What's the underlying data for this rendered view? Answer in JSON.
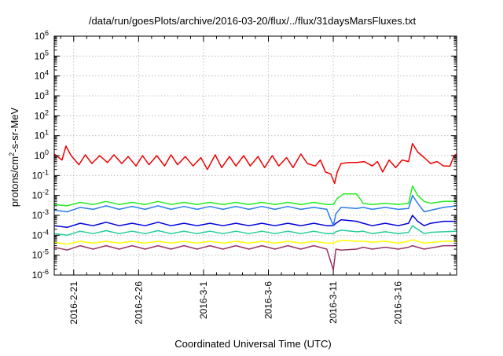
{
  "chart_data": {
    "type": "line",
    "title": "/data/run/goesPlots/archive/2016-03-20/flux/../flux/31daysMarsFluxes.txt",
    "xlabel": "Coordinated Universal Time (UTC)",
    "ylabel": {
      "base": "protons/cm",
      "sup": "2",
      "rest": "-s-sr-MeV"
    },
    "x_range_days": [
      -1.5,
      29.5
    ],
    "x_ticks": [
      {
        "day": 0,
        "label": "2016-2-21"
      },
      {
        "day": 5,
        "label": "2016-2-26"
      },
      {
        "day": 10,
        "label": "2016-3-1"
      },
      {
        "day": 15,
        "label": "2016-3-6"
      },
      {
        "day": 20,
        "label": "2016-3-11"
      },
      {
        "day": 25,
        "label": "2016-3-16"
      }
    ],
    "y_scale": "log",
    "ylim": [
      1e-06,
      1000000.0
    ],
    "y_ticks": [
      {
        "exp": -6,
        "base": "10",
        "sup": "-6"
      },
      {
        "exp": -5,
        "base": "10",
        "sup": "-5"
      },
      {
        "exp": -4,
        "base": "10",
        "sup": "-4"
      },
      {
        "exp": -3,
        "base": "10",
        "sup": "-3"
      },
      {
        "exp": -2,
        "base": "10",
        "sup": "-2"
      },
      {
        "exp": -1,
        "base": "10",
        "sup": "-1"
      },
      {
        "exp": 0,
        "base": "10",
        "sup": "0"
      },
      {
        "exp": 1,
        "base": "10",
        "sup": "1"
      },
      {
        "exp": 2,
        "base": "10",
        "sup": "2"
      },
      {
        "exp": 3,
        "base": "10",
        "sup": "3"
      },
      {
        "exp": 4,
        "base": "10",
        "sup": "4"
      },
      {
        "exp": 5,
        "base": "10",
        "sup": "5"
      },
      {
        "exp": 6,
        "base": "10",
        "sup": "6"
      }
    ],
    "grid": true,
    "series": [
      {
        "color": "#ee0000",
        "points": [
          [
            -1.5,
            1.2
          ],
          [
            -0.9,
            0.6
          ],
          [
            -0.6,
            3.0
          ],
          [
            -0.2,
            1.0
          ],
          [
            0.4,
            0.35
          ],
          [
            0.9,
            1.1
          ],
          [
            1.4,
            0.4
          ],
          [
            2.0,
            1.0
          ],
          [
            2.6,
            0.45
          ],
          [
            3.1,
            1.1
          ],
          [
            3.7,
            0.4
          ],
          [
            4.2,
            0.9
          ],
          [
            4.8,
            0.3
          ],
          [
            5.3,
            1.0
          ],
          [
            5.8,
            0.35
          ],
          [
            6.4,
            1.0
          ],
          [
            7.0,
            0.3
          ],
          [
            7.5,
            1.1
          ],
          [
            8.0,
            0.35
          ],
          [
            8.6,
            0.9
          ],
          [
            9.2,
            0.3
          ],
          [
            9.8,
            0.8
          ],
          [
            10.3,
            0.2
          ],
          [
            10.9,
            1.1
          ],
          [
            11.4,
            0.25
          ],
          [
            12.0,
            0.9
          ],
          [
            12.5,
            0.3
          ],
          [
            13.1,
            1.0
          ],
          [
            13.6,
            0.3
          ],
          [
            14.2,
            0.9
          ],
          [
            14.7,
            0.25
          ],
          [
            15.3,
            1.0
          ],
          [
            15.8,
            0.3
          ],
          [
            16.4,
            0.8
          ],
          [
            16.9,
            0.25
          ],
          [
            17.5,
            1.2
          ],
          [
            18.0,
            0.4
          ],
          [
            18.6,
            0.3
          ],
          [
            19.0,
            0.6
          ],
          [
            19.4,
            0.15
          ],
          [
            19.8,
            0.12
          ],
          [
            20.1,
            0.04
          ],
          [
            20.3,
            0.15
          ],
          [
            20.6,
            0.4
          ],
          [
            21.2,
            0.45
          ],
          [
            21.8,
            0.45
          ],
          [
            22.4,
            0.5
          ],
          [
            23.0,
            0.3
          ],
          [
            23.4,
            0.5
          ],
          [
            23.8,
            0.15
          ],
          [
            24.3,
            0.6
          ],
          [
            24.8,
            0.25
          ],
          [
            25.3,
            0.6
          ],
          [
            25.8,
            0.5
          ],
          [
            26.1,
            4.0
          ],
          [
            26.5,
            1.5
          ],
          [
            27.0,
            0.8
          ],
          [
            27.5,
            0.4
          ],
          [
            28.0,
            0.5
          ],
          [
            28.5,
            0.3
          ],
          [
            29.0,
            0.3
          ],
          [
            29.3,
            1.0
          ],
          [
            29.5,
            1.2
          ]
        ]
      },
      {
        "color": "#22ee22",
        "points": [
          [
            -1.5,
            0.0035
          ],
          [
            -0.5,
            0.003
          ],
          [
            0.5,
            0.0045
          ],
          [
            1.5,
            0.0035
          ],
          [
            2.5,
            0.005
          ],
          [
            3.5,
            0.0035
          ],
          [
            4.5,
            0.0045
          ],
          [
            5.5,
            0.0035
          ],
          [
            6.5,
            0.005
          ],
          [
            7.5,
            0.0035
          ],
          [
            8.5,
            0.0045
          ],
          [
            9.5,
            0.0035
          ],
          [
            10.5,
            0.0045
          ],
          [
            11.5,
            0.0035
          ],
          [
            12.5,
            0.0045
          ],
          [
            13.5,
            0.0035
          ],
          [
            14.5,
            0.0045
          ],
          [
            15.5,
            0.0035
          ],
          [
            16.5,
            0.0045
          ],
          [
            17.5,
            0.0035
          ],
          [
            18.5,
            0.0045
          ],
          [
            19.5,
            0.0035
          ],
          [
            20.0,
            0.0035
          ],
          [
            20.3,
            0.007
          ],
          [
            20.8,
            0.012
          ],
          [
            21.8,
            0.012
          ],
          [
            22.3,
            0.004
          ],
          [
            23.0,
            0.0035
          ],
          [
            24.0,
            0.004
          ],
          [
            25.0,
            0.0035
          ],
          [
            25.8,
            0.004
          ],
          [
            26.1,
            0.03
          ],
          [
            26.5,
            0.01
          ],
          [
            27.0,
            0.005
          ],
          [
            27.5,
            0.004
          ],
          [
            28.5,
            0.005
          ],
          [
            29.5,
            0.005
          ]
        ]
      },
      {
        "color": "#2b7bf0",
        "points": [
          [
            -1.5,
            0.0018
          ],
          [
            -0.5,
            0.0015
          ],
          [
            0.5,
            0.0025
          ],
          [
            1.5,
            0.002
          ],
          [
            2.5,
            0.003
          ],
          [
            3.5,
            0.002
          ],
          [
            4.5,
            0.0028
          ],
          [
            5.5,
            0.002
          ],
          [
            6.5,
            0.003
          ],
          [
            7.5,
            0.002
          ],
          [
            8.5,
            0.0028
          ],
          [
            9.5,
            0.002
          ],
          [
            10.5,
            0.0028
          ],
          [
            11.5,
            0.002
          ],
          [
            12.5,
            0.0028
          ],
          [
            13.5,
            0.002
          ],
          [
            14.5,
            0.0028
          ],
          [
            15.5,
            0.002
          ],
          [
            16.5,
            0.0028
          ],
          [
            17.5,
            0.002
          ],
          [
            18.5,
            0.0025
          ],
          [
            19.5,
            0.002
          ],
          [
            20.0,
            0.0003
          ],
          [
            20.2,
            0.0012
          ],
          [
            20.6,
            0.0025
          ],
          [
            21.8,
            0.0022
          ],
          [
            22.3,
            0.0025
          ],
          [
            23.0,
            0.002
          ],
          [
            24.0,
            0.0025
          ],
          [
            25.0,
            0.002
          ],
          [
            25.8,
            0.0022
          ],
          [
            26.1,
            0.01
          ],
          [
            26.5,
            0.004
          ],
          [
            27.0,
            0.0015
          ],
          [
            27.5,
            0.0018
          ],
          [
            28.5,
            0.0025
          ],
          [
            29.5,
            0.003
          ]
        ]
      },
      {
        "color": "#0000dd",
        "points": [
          [
            -1.5,
            0.0003
          ],
          [
            -0.5,
            0.00025
          ],
          [
            0.5,
            0.0004
          ],
          [
            1.5,
            0.0003
          ],
          [
            2.5,
            0.00045
          ],
          [
            3.5,
            0.0003
          ],
          [
            4.5,
            0.0004
          ],
          [
            5.5,
            0.0003
          ],
          [
            6.5,
            0.00045
          ],
          [
            7.5,
            0.0003
          ],
          [
            8.5,
            0.0004
          ],
          [
            9.5,
            0.0003
          ],
          [
            10.5,
            0.0004
          ],
          [
            11.5,
            0.0003
          ],
          [
            12.5,
            0.0004
          ],
          [
            13.5,
            0.0003
          ],
          [
            14.5,
            0.0004
          ],
          [
            15.5,
            0.0003
          ],
          [
            16.5,
            0.0004
          ],
          [
            17.5,
            0.0003
          ],
          [
            18.5,
            0.0004
          ],
          [
            19.5,
            0.0003
          ],
          [
            20.0,
            0.0003
          ],
          [
            20.2,
            0.0004
          ],
          [
            20.6,
            0.0006
          ],
          [
            21.8,
            0.0005
          ],
          [
            22.3,
            0.0004
          ],
          [
            23.0,
            0.0003
          ],
          [
            24.0,
            0.0004
          ],
          [
            25.0,
            0.0003
          ],
          [
            25.8,
            0.0004
          ],
          [
            26.1,
            0.001
          ],
          [
            26.5,
            0.0005
          ],
          [
            27.0,
            0.0003
          ],
          [
            27.5,
            0.0004
          ],
          [
            28.5,
            0.0005
          ],
          [
            29.5,
            0.0005
          ]
        ]
      },
      {
        "color": "#22cc99",
        "points": [
          [
            -1.5,
            0.00012
          ],
          [
            -0.5,
            0.0001
          ],
          [
            0.5,
            0.00016
          ],
          [
            1.5,
            0.00012
          ],
          [
            2.5,
            0.00017
          ],
          [
            3.5,
            0.00012
          ],
          [
            4.5,
            0.00016
          ],
          [
            5.5,
            0.00012
          ],
          [
            6.5,
            0.00017
          ],
          [
            7.5,
            0.00012
          ],
          [
            8.5,
            0.00016
          ],
          [
            9.5,
            0.00012
          ],
          [
            10.5,
            0.00016
          ],
          [
            11.5,
            0.00012
          ],
          [
            12.5,
            0.00016
          ],
          [
            13.5,
            0.00012
          ],
          [
            14.5,
            0.00016
          ],
          [
            15.5,
            0.00012
          ],
          [
            16.5,
            0.00016
          ],
          [
            17.5,
            0.00012
          ],
          [
            18.5,
            0.00016
          ],
          [
            19.5,
            0.00012
          ],
          [
            20.0,
            0.00012
          ],
          [
            20.2,
            0.00015
          ],
          [
            20.6,
            0.00018
          ],
          [
            21.8,
            0.00015
          ],
          [
            22.3,
            0.00016
          ],
          [
            23.0,
            0.00012
          ],
          [
            24.0,
            0.00015
          ],
          [
            25.0,
            0.00012
          ],
          [
            25.8,
            0.00014
          ],
          [
            26.1,
            0.0003
          ],
          [
            26.5,
            0.0002
          ],
          [
            27.0,
            0.00012
          ],
          [
            27.5,
            0.00014
          ],
          [
            28.5,
            0.00015
          ],
          [
            29.5,
            0.00016
          ]
        ]
      },
      {
        "color": "#ffff00",
        "points": [
          [
            -1.5,
            4.5e-05
          ],
          [
            -0.5,
            3.5e-05
          ],
          [
            0.5,
            5e-05
          ],
          [
            1.5,
            4e-05
          ],
          [
            2.5,
            5e-05
          ],
          [
            3.5,
            4e-05
          ],
          [
            4.5,
            5e-05
          ],
          [
            5.5,
            4e-05
          ],
          [
            6.5,
            5e-05
          ],
          [
            7.5,
            4e-05
          ],
          [
            8.5,
            5e-05
          ],
          [
            9.5,
            4e-05
          ],
          [
            10.5,
            5e-05
          ],
          [
            11.5,
            4e-05
          ],
          [
            12.5,
            5e-05
          ],
          [
            13.5,
            4e-05
          ],
          [
            14.5,
            5e-05
          ],
          [
            15.5,
            4e-05
          ],
          [
            16.5,
            5e-05
          ],
          [
            17.5,
            4e-05
          ],
          [
            18.5,
            5e-05
          ],
          [
            19.5,
            4e-05
          ],
          [
            20.0,
            4e-05
          ],
          [
            20.3,
            5e-05
          ],
          [
            20.8,
            5.5e-05
          ],
          [
            21.8,
            5e-05
          ],
          [
            22.3,
            5e-05
          ],
          [
            23.0,
            4.5e-05
          ],
          [
            24.0,
            5e-05
          ],
          [
            25.0,
            4e-05
          ],
          [
            25.8,
            5e-05
          ],
          [
            26.1,
            6e-05
          ],
          [
            26.5,
            5e-05
          ],
          [
            27.0,
            4e-05
          ],
          [
            28.5,
            5e-05
          ],
          [
            29.5,
            5e-05
          ]
        ]
      },
      {
        "color": "#993366",
        "points": [
          [
            -1.5,
            2.5e-05
          ],
          [
            -0.5,
            1.8e-05
          ],
          [
            0.5,
            3e-05
          ],
          [
            1.5,
            2e-05
          ],
          [
            2.5,
            3e-05
          ],
          [
            3.5,
            2e-05
          ],
          [
            4.5,
            3e-05
          ],
          [
            5.5,
            2e-05
          ],
          [
            6.5,
            3e-05
          ],
          [
            7.5,
            2e-05
          ],
          [
            8.5,
            3e-05
          ],
          [
            9.5,
            2e-05
          ],
          [
            10.5,
            3e-05
          ],
          [
            11.5,
            2e-05
          ],
          [
            12.5,
            3e-05
          ],
          [
            13.5,
            2e-05
          ],
          [
            14.5,
            3e-05
          ],
          [
            15.5,
            2e-05
          ],
          [
            16.5,
            3e-05
          ],
          [
            17.5,
            2e-05
          ],
          [
            18.5,
            3e-05
          ],
          [
            19.5,
            2e-05
          ],
          [
            20.0,
            1.8e-06
          ],
          [
            20.2,
            2e-05
          ],
          [
            20.6,
            1.8e-05
          ],
          [
            21.8,
            2e-05
          ],
          [
            22.3,
            2.5e-05
          ],
          [
            23.0,
            2e-05
          ],
          [
            24.0,
            2.5e-05
          ],
          [
            25.0,
            2e-05
          ],
          [
            25.8,
            2.5e-05
          ],
          [
            26.1,
            3e-05
          ],
          [
            26.5,
            2.5e-05
          ],
          [
            27.0,
            2e-05
          ],
          [
            28.5,
            3e-05
          ],
          [
            29.5,
            3e-05
          ]
        ]
      }
    ]
  }
}
